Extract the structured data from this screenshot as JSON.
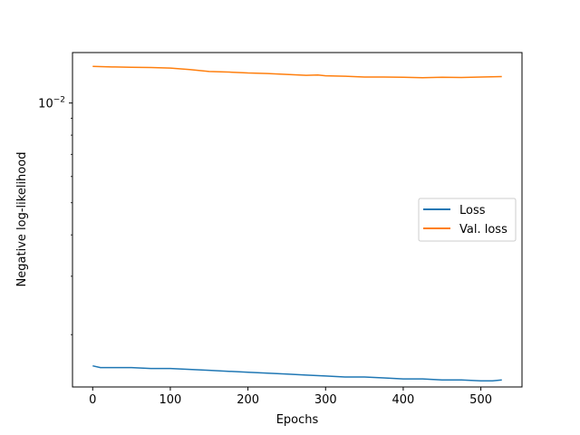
{
  "chart_data": {
    "type": "line",
    "xlabel": "Epochs",
    "ylabel": "Negative log-likelihood",
    "yscale": "log",
    "xlim": [
      -26,
      553
    ],
    "ylim": [
      0.00139,
      0.0142
    ],
    "xticks": [
      0,
      100,
      200,
      300,
      400,
      500
    ],
    "yticks": [
      {
        "value": 0.01,
        "base": "10",
        "exp": "−2"
      }
    ],
    "legend_position": "center-right",
    "series": [
      {
        "name": "Loss",
        "color": "#1f77b4",
        "x": [
          0,
          10,
          25,
          50,
          75,
          100,
          125,
          150,
          175,
          200,
          225,
          250,
          275,
          300,
          325,
          350,
          375,
          400,
          425,
          450,
          475,
          500,
          515,
          527
        ],
        "y": [
          0.00161,
          0.00159,
          0.00159,
          0.00159,
          0.00158,
          0.00158,
          0.00157,
          0.00156,
          0.00155,
          0.00154,
          0.00153,
          0.00152,
          0.00151,
          0.0015,
          0.00149,
          0.00149,
          0.00148,
          0.00147,
          0.00147,
          0.00146,
          0.00146,
          0.00145,
          0.00145,
          0.00146
        ]
      },
      {
        "name": "Val. loss",
        "color": "#ff7f0e",
        "x": [
          0,
          25,
          50,
          75,
          100,
          125,
          150,
          175,
          200,
          225,
          250,
          275,
          290,
          300,
          325,
          350,
          375,
          400,
          425,
          450,
          475,
          500,
          527
        ],
        "y": [
          0.0129,
          0.01285,
          0.01282,
          0.0128,
          0.01275,
          0.01262,
          0.01245,
          0.0124,
          0.01232,
          0.01228,
          0.0122,
          0.01212,
          0.01215,
          0.01208,
          0.01205,
          0.01198,
          0.01198,
          0.01196,
          0.01192,
          0.01196,
          0.01194,
          0.01198,
          0.01202
        ]
      }
    ]
  }
}
